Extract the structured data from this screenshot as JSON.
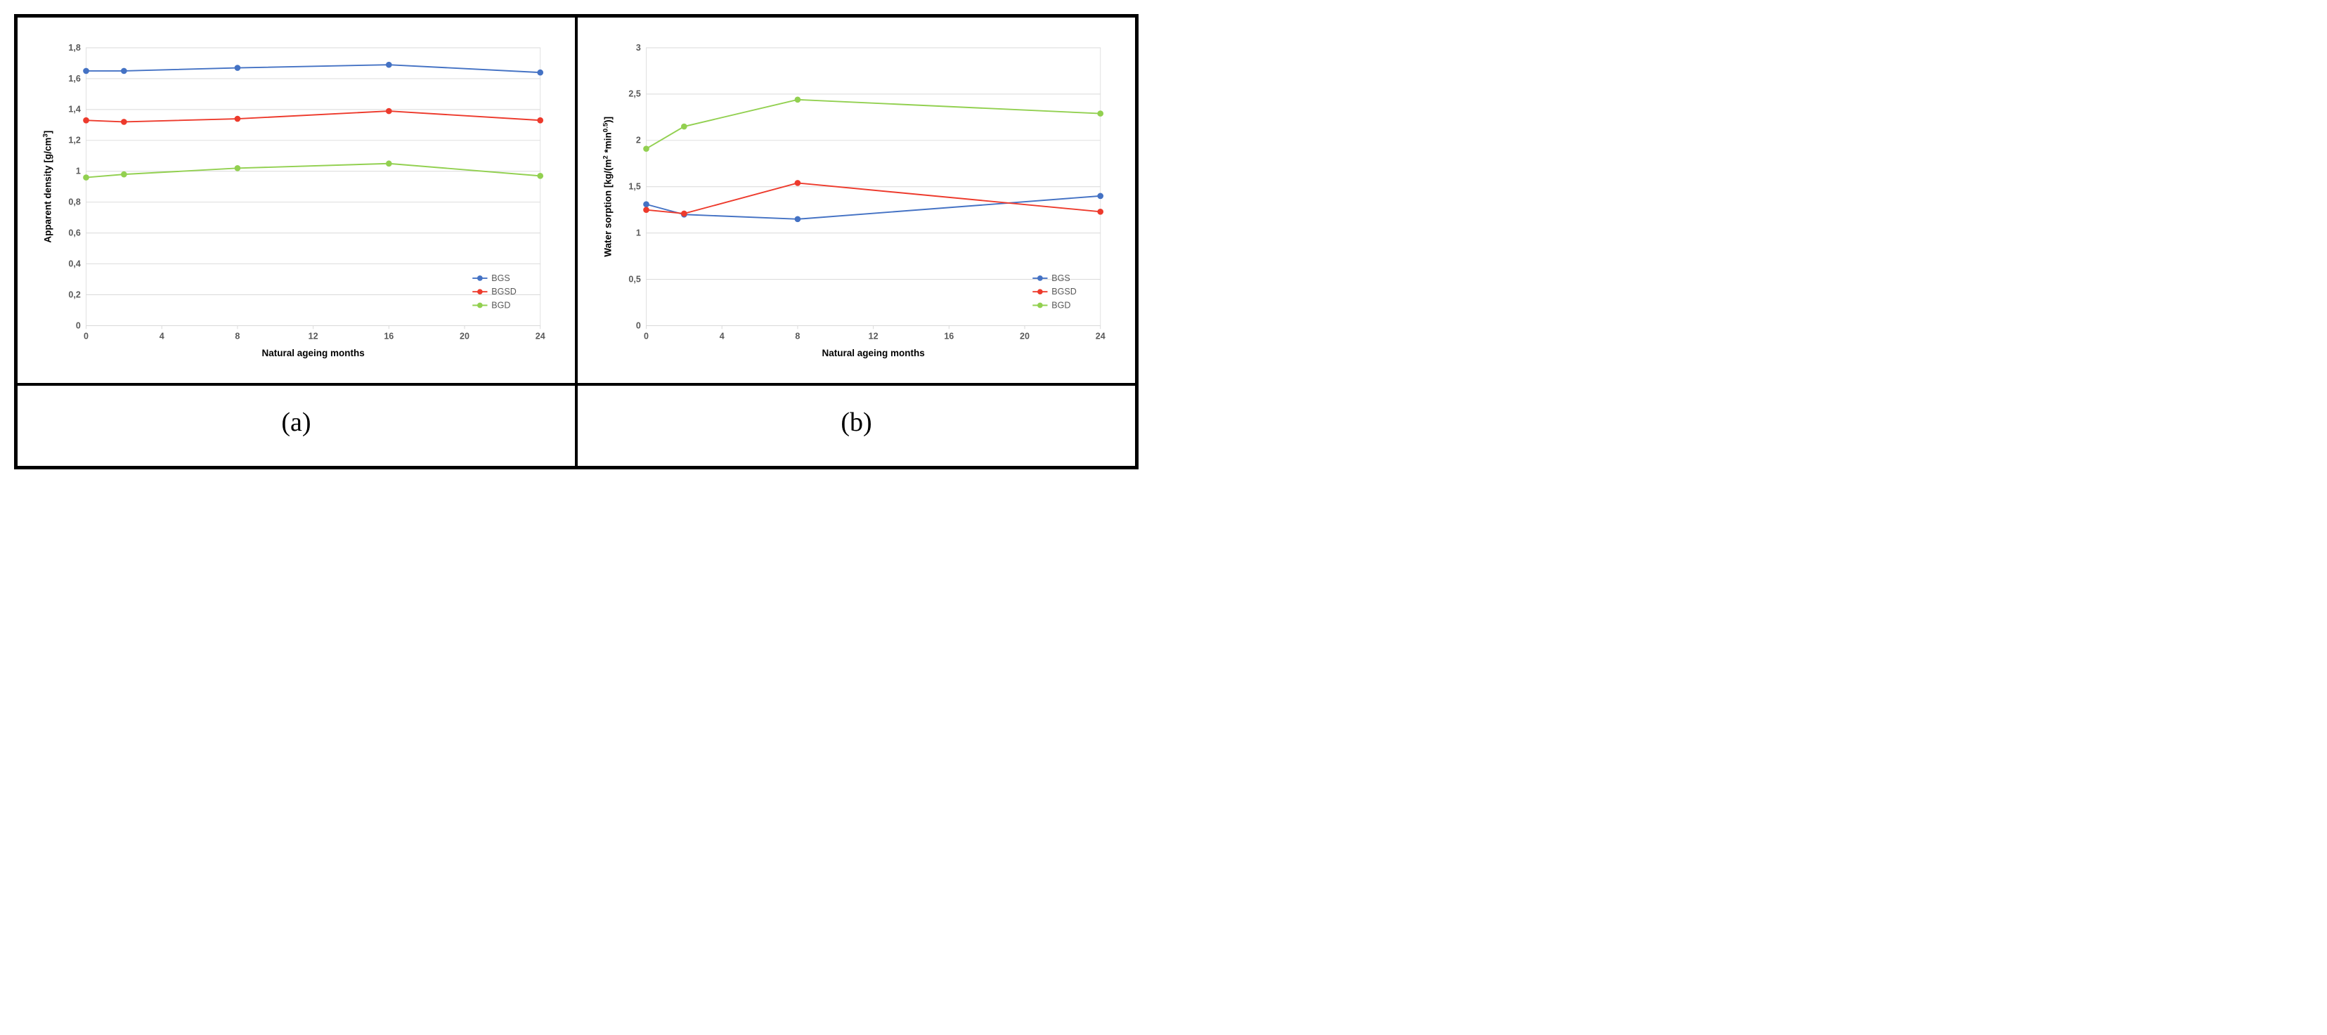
{
  "panel_labels": {
    "a": "(a)",
    "b": "(b)"
  },
  "chart_a": {
    "type": "line",
    "xlabel": "Natural ageing months",
    "ylabel": "Apparent density [g/cm³]",
    "x_ticks": [
      0,
      4,
      8,
      12,
      16,
      20,
      24
    ],
    "y_ticks": [
      0,
      0.2,
      0.4,
      0.6,
      0.8,
      1.0,
      1.2,
      1.4,
      1.6,
      1.8
    ],
    "y_tick_labels": [
      "0",
      "0,2",
      "0,4",
      "0,6",
      "0,8",
      "1",
      "1,2",
      "1,4",
      "1,6",
      "1,8"
    ],
    "xlim": [
      0,
      24
    ],
    "ylim": [
      0,
      1.8
    ],
    "background_color": "#ffffff",
    "grid_color": "#d9d9d9",
    "label_fontsize": 14,
    "tick_fontsize": 13,
    "line_width": 2,
    "marker_radius": 4,
    "legend_position": "bottom-right",
    "series": [
      {
        "name": "BGS",
        "color": "#4472c4",
        "x": [
          0,
          2,
          8,
          16,
          24
        ],
        "y": [
          1.65,
          1.65,
          1.67,
          1.69,
          1.64
        ]
      },
      {
        "name": "BGSD",
        "color": "#ed3a2c",
        "x": [
          0,
          2,
          8,
          16,
          24
        ],
        "y": [
          1.33,
          1.32,
          1.34,
          1.39,
          1.33
        ]
      },
      {
        "name": "BGD",
        "color": "#92d050",
        "x": [
          0,
          2,
          8,
          16,
          24
        ],
        "y": [
          0.96,
          0.98,
          1.02,
          1.05,
          0.97
        ]
      }
    ]
  },
  "chart_b": {
    "type": "line",
    "xlabel": "Natural ageing months",
    "ylabel": "Water sorption [kg/(m² *min^0.5)]",
    "x_ticks": [
      0,
      4,
      8,
      12,
      16,
      20,
      24
    ],
    "y_ticks": [
      0,
      0.5,
      1.0,
      1.5,
      2.0,
      2.5,
      3.0
    ],
    "y_tick_labels": [
      "0",
      "0,5",
      "1",
      "1,5",
      "2",
      "2,5",
      "3"
    ],
    "xlim": [
      0,
      24
    ],
    "ylim": [
      0,
      3.0
    ],
    "background_color": "#ffffff",
    "grid_color": "#d9d9d9",
    "label_fontsize": 14,
    "tick_fontsize": 13,
    "line_width": 2,
    "marker_radius": 4,
    "legend_position": "bottom-right",
    "series": [
      {
        "name": "BGS",
        "color": "#4472c4",
        "x": [
          0,
          2,
          8,
          24
        ],
        "y": [
          1.31,
          1.2,
          1.15,
          1.4
        ]
      },
      {
        "name": "BGSD",
        "color": "#ed3a2c",
        "x": [
          0,
          2,
          8,
          24
        ],
        "y": [
          1.25,
          1.21,
          1.54,
          1.23
        ]
      },
      {
        "name": "BGD",
        "color": "#92d050",
        "x": [
          0,
          2,
          8,
          24
        ],
        "y": [
          1.91,
          2.15,
          2.44,
          2.29
        ]
      }
    ]
  }
}
